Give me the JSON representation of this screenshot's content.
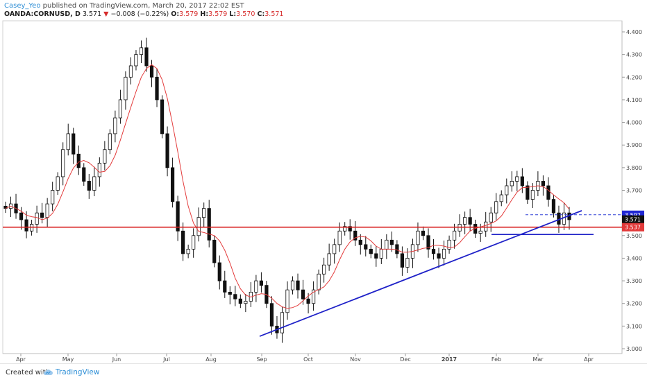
{
  "header": {
    "author": "Casey_Yeo",
    "published_text": "published on TradingView.com, March 20, 2017 22:02 EST"
  },
  "ohlc": {
    "symbol": "OANDA:CORNUSD, D",
    "last": "3.571",
    "change": "−0.008 (−0.22%)",
    "open_label": "O:",
    "open": "3.579",
    "high_label": "H:",
    "high": "3.579",
    "low_label": "L:",
    "low": "3.570",
    "close_label": "C:",
    "close": "3.571",
    "change_color": "#d62d2d"
  },
  "footer": {
    "created_with": "Created with",
    "brand": "TradingView",
    "brand_icon": "tradingview-cloud-icon"
  },
  "chart_data": {
    "type": "candlestick",
    "symbol": "OANDA:CORNUSD",
    "interval": "D",
    "y_ticks": [
      "4.400",
      "4.300",
      "4.200",
      "4.100",
      "4.000",
      "3.900",
      "3.800",
      "3.700",
      "3.600",
      "3.500",
      "3.400",
      "3.300",
      "3.200",
      "3.100",
      "3.000"
    ],
    "ylim": [
      3.0,
      4.4
    ],
    "x_ticks": [
      "Apr",
      "May",
      "Jun",
      "Jul",
      "Aug",
      "Sep",
      "Oct",
      "Nov",
      "Dec",
      "2017",
      "Feb",
      "Mar",
      "Apr"
    ],
    "x_tick_bold": [
      false,
      false,
      false,
      false,
      false,
      false,
      false,
      false,
      false,
      true,
      false,
      false,
      false
    ],
    "price_badges": [
      {
        "label": "3.592",
        "value": 3.592,
        "color": "#2128d4"
      },
      {
        "label": "3.571",
        "value": 3.571,
        "color": "#111111"
      },
      {
        "label": "3.537",
        "value": 3.537,
        "color": "#e23a3a"
      }
    ],
    "closes": [
      3.62,
      3.64,
      3.6,
      3.57,
      3.52,
      3.55,
      3.6,
      3.58,
      3.64,
      3.7,
      3.76,
      3.88,
      3.95,
      3.86,
      3.8,
      3.74,
      3.7,
      3.76,
      3.82,
      3.88,
      3.95,
      4.02,
      4.1,
      4.2,
      4.25,
      4.3,
      4.33,
      4.25,
      4.2,
      4.1,
      3.95,
      3.8,
      3.65,
      3.52,
      3.42,
      3.44,
      3.5,
      3.58,
      3.62,
      3.48,
      3.38,
      3.3,
      3.25,
      3.24,
      3.22,
      3.2,
      3.21,
      3.25,
      3.3,
      3.28,
      3.2,
      3.1,
      3.07,
      3.16,
      3.26,
      3.3,
      3.26,
      3.22,
      3.2,
      3.26,
      3.33,
      3.37,
      3.42,
      3.46,
      3.52,
      3.54,
      3.52,
      3.48,
      3.46,
      3.44,
      3.42,
      3.4,
      3.44,
      3.48,
      3.46,
      3.42,
      3.36,
      3.4,
      3.46,
      3.52,
      3.5,
      3.44,
      3.42,
      3.4,
      3.44,
      3.48,
      3.52,
      3.55,
      3.58,
      3.55,
      3.51,
      3.52,
      3.56,
      3.6,
      3.65,
      3.68,
      3.72,
      3.74,
      3.76,
      3.72,
      3.66,
      3.7,
      3.74,
      3.72,
      3.66,
      3.6,
      3.55,
      3.6,
      3.57
    ],
    "ma_color": "#e33b3b",
    "trendline": {
      "from": {
        "x": "Aug 29",
        "y": 3.055
      },
      "to": {
        "x": "Mar 21",
        "y": 3.61
      },
      "color": "#1f22c8"
    },
    "support_red": {
      "y": 3.537,
      "color": "#d81f1f"
    },
    "support_blue": {
      "y": 3.505,
      "from": "Feb 1",
      "color": "#1f22c8"
    },
    "resistance_dashed": {
      "y": 3.592,
      "from": "Feb 20",
      "color": "#2f3fd6"
    }
  }
}
